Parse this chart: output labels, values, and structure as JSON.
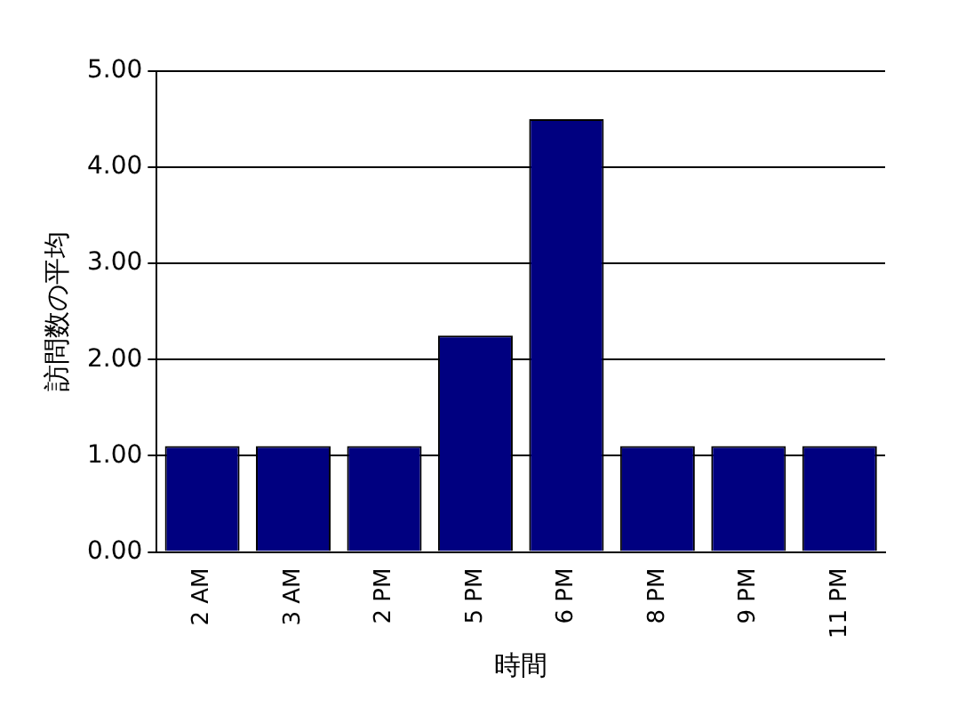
{
  "chart_data": {
    "type": "bar",
    "xlabel": "時間",
    "ylabel": "訪問数の平均",
    "categories": [
      "2 AM",
      "3 AM",
      "2 PM",
      "5 PM",
      "6 PM",
      "8 PM",
      "9 PM",
      "11 PM"
    ],
    "values": [
      1.1,
      1.1,
      1.1,
      2.25,
      4.5,
      1.1,
      1.1,
      1.1
    ],
    "color": "#000080",
    "ylim": [
      0,
      5
    ],
    "yticks": [
      {
        "value": 0,
        "label": "0.00"
      },
      {
        "value": 1,
        "label": "1.00"
      },
      {
        "value": 2,
        "label": "2.00"
      },
      {
        "value": 3,
        "label": "3.00"
      },
      {
        "value": 4,
        "label": "4.00"
      },
      {
        "value": 5,
        "label": "5.00"
      }
    ],
    "grid": "y",
    "legend": false
  }
}
